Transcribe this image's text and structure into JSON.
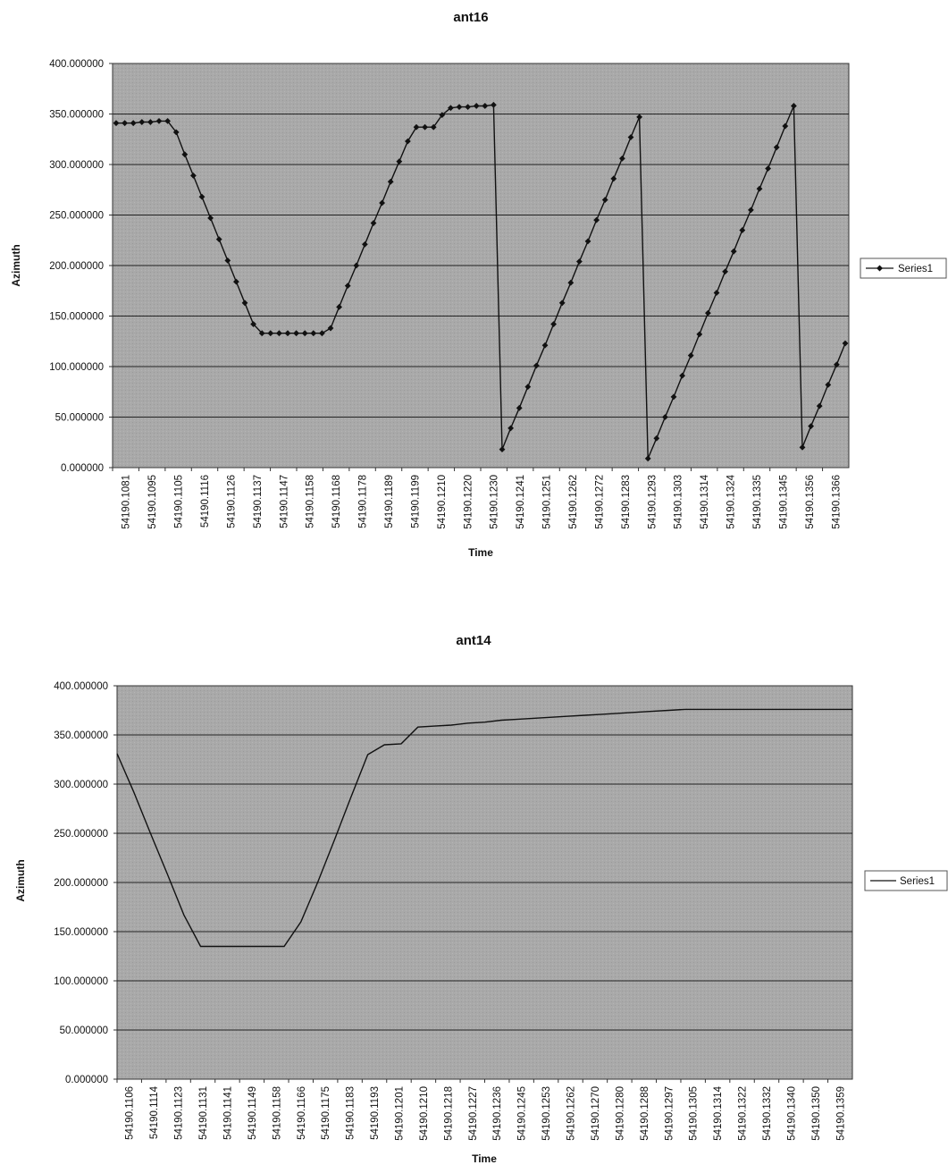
{
  "chart_data": [
    {
      "type": "line",
      "title": "ant16",
      "xlabel": "Time",
      "ylabel": "Azimuth",
      "ylim": [
        0,
        400
      ],
      "yticks": [
        "0.000000",
        "50.000000",
        "100.000000",
        "150.000000",
        "200.000000",
        "250.000000",
        "300.000000",
        "350.000000",
        "400.000000"
      ],
      "xticks": [
        "54190.1081",
        "54190.1095",
        "54190.1105",
        "54190.1116",
        "54190.1126",
        "54190.1137",
        "54190.1147",
        "54190.1158",
        "54190.1168",
        "54190.1178",
        "54190.1189",
        "54190.1199",
        "54190.1210",
        "54190.1220",
        "54190.1230",
        "54190.1241",
        "54190.1251",
        "54190.1262",
        "54190.1272",
        "54190.1283",
        "54190.1293",
        "54190.1303",
        "54190.1314",
        "54190.1324",
        "54190.1335",
        "54190.1345",
        "54190.1356",
        "54190.1366"
      ],
      "markers": true,
      "grid": true,
      "legend": "right",
      "series": [
        {
          "name": "Series1",
          "values": [
            341,
            341,
            341,
            342,
            342,
            343,
            343,
            332,
            310,
            289,
            268,
            247,
            226,
            205,
            184,
            163,
            142,
            133,
            133,
            133,
            133,
            133,
            133,
            133,
            133,
            138,
            159,
            180,
            200,
            221,
            242,
            262,
            283,
            303,
            323,
            337,
            337,
            337,
            349,
            356,
            357,
            357,
            358,
            358,
            359,
            18,
            39,
            59,
            80,
            101,
            121,
            142,
            163,
            183,
            204,
            224,
            245,
            265,
            286,
            306,
            327,
            347,
            9,
            29,
            50,
            70,
            91,
            111,
            132,
            153,
            173,
            194,
            214,
            235,
            255,
            276,
            296,
            317,
            338,
            358,
            20,
            41,
            61,
            82,
            102,
            123
          ]
        }
      ],
      "colors": {
        "plot_bg": "#a9a9a9",
        "line": "#111111",
        "grid": "#222222"
      }
    },
    {
      "type": "line",
      "title": "ant14",
      "xlabel": "Time",
      "ylabel": "Azimuth",
      "ylim": [
        0,
        400
      ],
      "yticks": [
        "0.000000",
        "50.000000",
        "100.000000",
        "150.000000",
        "200.000000",
        "250.000000",
        "300.000000",
        "350.000000",
        "400.000000"
      ],
      "xticks": [
        "54190.1106",
        "54190.1114",
        "54190.1123",
        "54190.1131",
        "54190.1141",
        "54190.1149",
        "54190.1158",
        "54190.1166",
        "54190.1175",
        "54190.1183",
        "54190.1193",
        "54190.1201",
        "54190.1210",
        "54190.1218",
        "54190.1227",
        "54190.1236",
        "54190.1245",
        "54190.1253",
        "54190.1262",
        "54190.1270",
        "54190.1280",
        "54190.1288",
        "54190.1297",
        "54190.1305",
        "54190.1314",
        "54190.1322",
        "54190.1332",
        "54190.1340",
        "54190.1350",
        "54190.1359"
      ],
      "markers": false,
      "grid": true,
      "legend": "right",
      "series": [
        {
          "name": "Series1",
          "values": [
            331,
            292,
            250,
            209,
            167,
            135,
            135,
            135,
            135,
            135,
            135,
            160,
            200,
            243,
            287,
            330,
            340,
            341,
            358,
            359,
            360,
            362,
            363,
            365,
            366,
            367,
            368,
            369,
            370,
            371,
            372,
            373,
            374,
            375,
            376,
            376,
            376,
            376,
            376,
            376,
            376,
            376,
            376,
            376,
            376
          ]
        }
      ],
      "colors": {
        "plot_bg": "#a9a9a9",
        "line": "#111111",
        "grid": "#222222"
      }
    }
  ]
}
